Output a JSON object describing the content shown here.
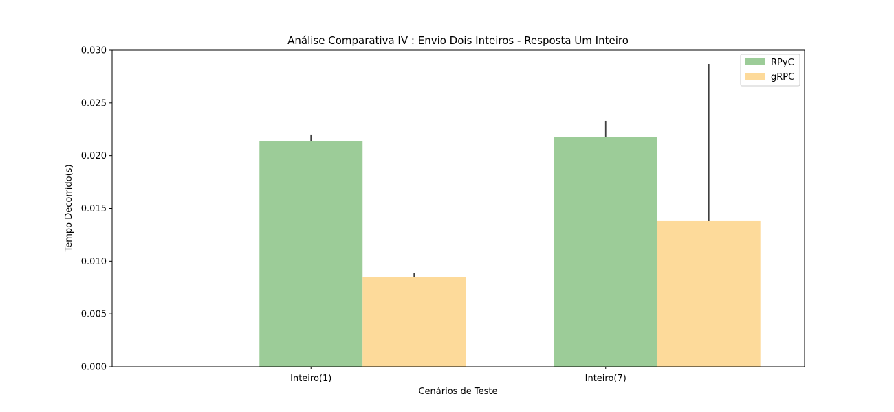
{
  "chart_data": {
    "type": "bar",
    "title": "Análise Comparativa IV : Envio Dois Inteiros - Resposta Um Inteiro",
    "xlabel": "Cenários de Teste",
    "ylabel": "Tempo Decorrido(s)",
    "categories": [
      "Inteiro(1)",
      "Inteiro(7)"
    ],
    "ylim": [
      0,
      0.03
    ],
    "yticks": [
      "0.000",
      "0.005",
      "0.010",
      "0.015",
      "0.020",
      "0.025",
      "0.030"
    ],
    "legend_position": "top-right",
    "grid": false,
    "series": [
      {
        "name": "RPyC",
        "color": "#9ccc98",
        "values": [
          0.0214,
          0.0218
        ],
        "error_upper": [
          0.022,
          0.0233
        ]
      },
      {
        "name": "gRPC",
        "color": "#fdda9a",
        "values": [
          0.0085,
          0.0138
        ],
        "error_upper": [
          0.0089,
          0.0287
        ]
      }
    ]
  }
}
